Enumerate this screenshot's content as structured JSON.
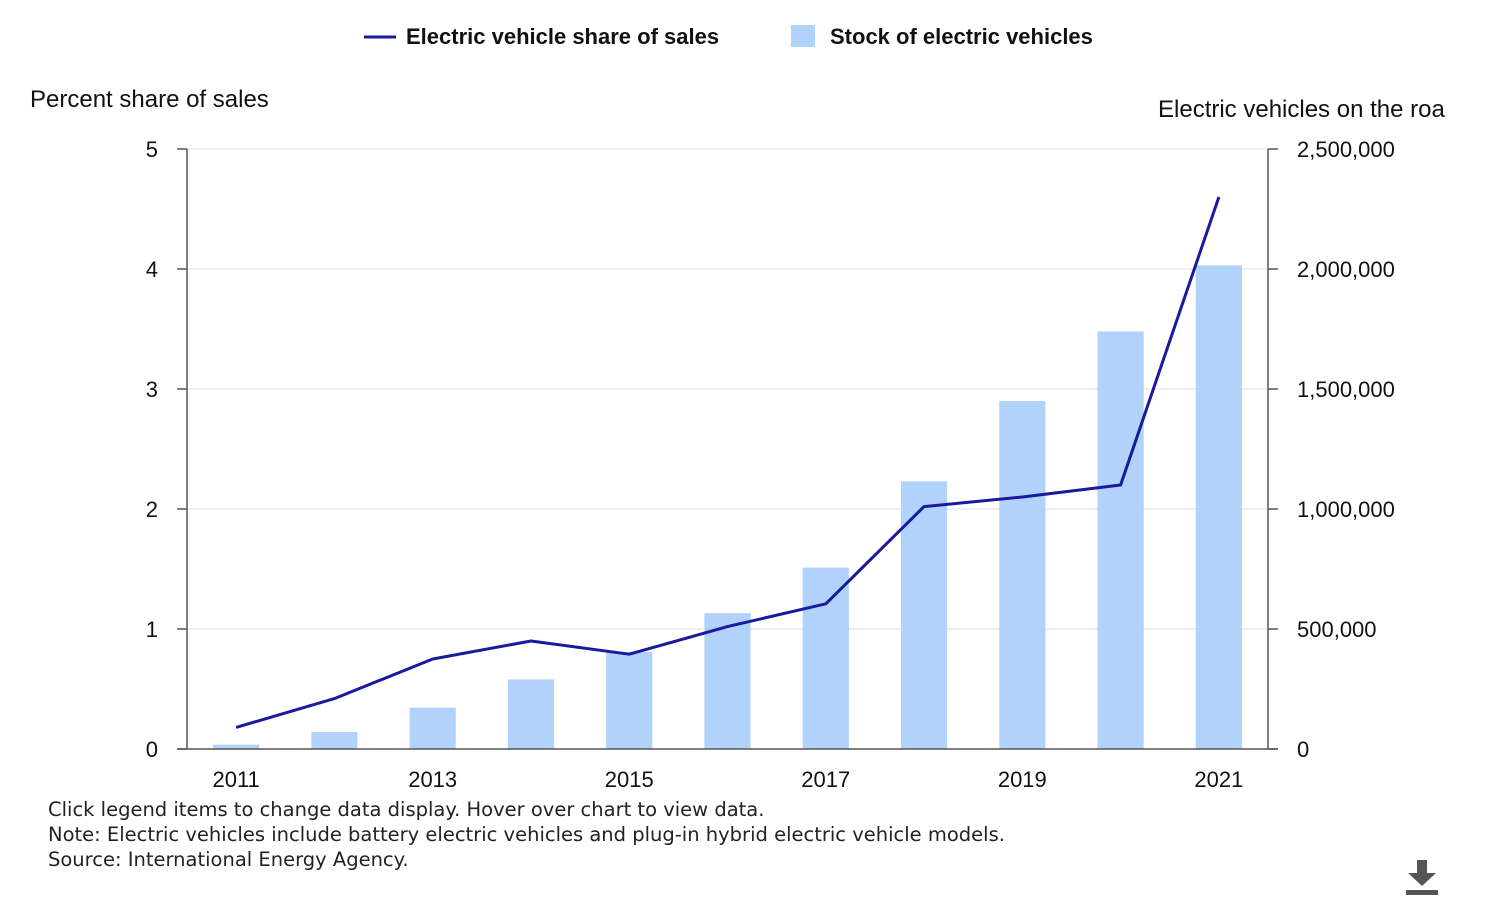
{
  "chart_data": {
    "type": "bar+line",
    "categories": [
      "2011",
      "2012",
      "2013",
      "2014",
      "2015",
      "2016",
      "2017",
      "2018",
      "2019",
      "2020",
      "2021"
    ],
    "x_tick_labels": [
      "2011",
      "",
      "2013",
      "",
      "2015",
      "",
      "2017",
      "",
      "2019",
      "",
      "2021"
    ],
    "series": [
      {
        "name": "Electric vehicle share of sales",
        "type": "line",
        "axis": "left",
        "color": "#1a1a9c",
        "values": [
          0.18,
          0.42,
          0.75,
          0.9,
          0.79,
          1.02,
          1.21,
          2.02,
          2.1,
          2.2,
          4.6
        ]
      },
      {
        "name": "Stock of electric vehicles",
        "type": "bar",
        "axis": "right",
        "color": "#b0d2fb",
        "values": [
          18000,
          71000,
          172000,
          290000,
          404000,
          566000,
          756000,
          1115000,
          1450000,
          1740000,
          2015000
        ]
      }
    ],
    "ylabel": "Percent share of sales",
    "ylabel_right": "Electric vehicles on the roa",
    "ylim": [
      0,
      5
    ],
    "yticks": [
      0,
      1,
      2,
      3,
      4,
      5
    ],
    "ylim_right": [
      0,
      2500000
    ],
    "yticks_right": [
      "0",
      "500,000",
      "1,000,000",
      "1,500,000",
      "2,000,000",
      "2,500,000"
    ],
    "grid": true,
    "legend": "top-center"
  },
  "notes": {
    "line1": "Click legend items to change data display. Hover over chart to view data.",
    "line2": "Note: Electric vehicles include battery electric vehicles and plug-in hybrid electric vehicle models.",
    "line3": "Source: International Energy Agency."
  },
  "icons": {
    "download": "download-icon"
  }
}
